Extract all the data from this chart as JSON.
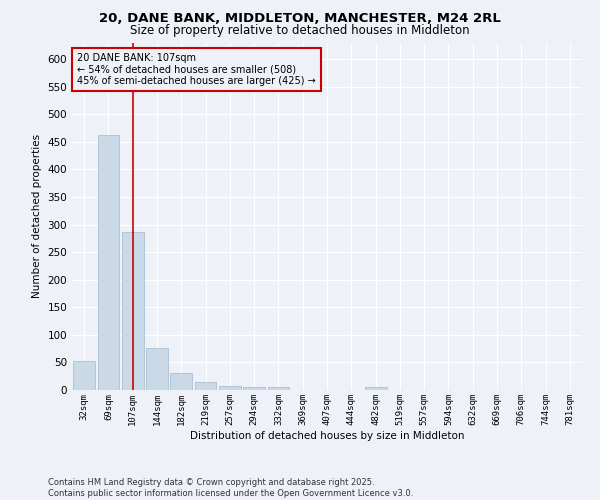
{
  "title_line1": "20, DANE BANK, MIDDLETON, MANCHESTER, M24 2RL",
  "title_line2": "Size of property relative to detached houses in Middleton",
  "xlabel": "Distribution of detached houses by size in Middleton",
  "ylabel": "Number of detached properties",
  "bin_labels": [
    "32sqm",
    "69sqm",
    "107sqm",
    "144sqm",
    "182sqm",
    "219sqm",
    "257sqm",
    "294sqm",
    "332sqm",
    "369sqm",
    "407sqm",
    "444sqm",
    "482sqm",
    "519sqm",
    "557sqm",
    "594sqm",
    "632sqm",
    "669sqm",
    "706sqm",
    "744sqm",
    "781sqm"
  ],
  "bar_heights": [
    53,
    463,
    286,
    76,
    30,
    15,
    8,
    5,
    6,
    0,
    0,
    0,
    5,
    0,
    0,
    0,
    0,
    0,
    0,
    0,
    0
  ],
  "bar_color": "#c9d9e8",
  "bar_edgecolor": "#a0b8cc",
  "redline_x": 2,
  "annotation_text": "20 DANE BANK: 107sqm\n← 54% of detached houses are smaller (508)\n45% of semi-detached houses are larger (425) →",
  "annotation_box_edgecolor": "#cc0000",
  "redline_color": "#cc0000",
  "ylim": [
    0,
    630
  ],
  "yticks": [
    0,
    50,
    100,
    150,
    200,
    250,
    300,
    350,
    400,
    450,
    500,
    550,
    600
  ],
  "background_color": "#eef2f8",
  "grid_color": "#ffffff",
  "footer_line1": "Contains HM Land Registry data © Crown copyright and database right 2025.",
  "footer_line2": "Contains public sector information licensed under the Open Government Licence v3.0."
}
